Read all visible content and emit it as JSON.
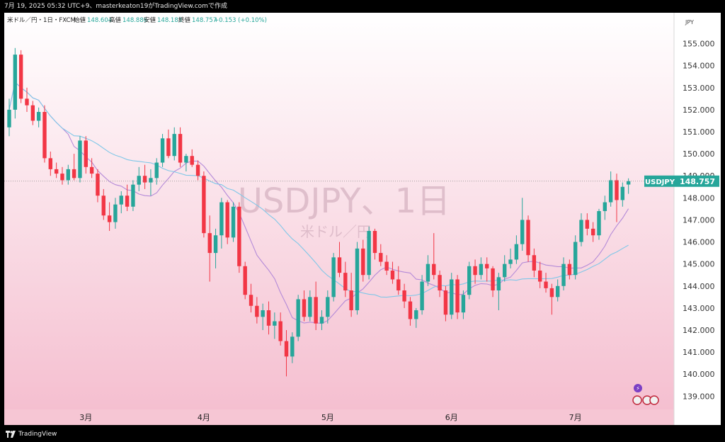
{
  "header": {
    "caption": "7月 19, 2025 05:32 UTC+9、masterkeaton19がTradingView.comで作成"
  },
  "footer": {
    "brand": "TradingView"
  },
  "chart_data": {
    "type": "candlestick",
    "legend": {
      "symbol": "米ドル／円・1日・FXCM",
      "open_label": "始値",
      "open": "148.604",
      "high_label": "高値",
      "high": "148.886",
      "low_label": "安値",
      "low": "148.183",
      "close_label": "終値",
      "close": "148.757",
      "change": "+0.153 (+0.10%)"
    },
    "currency": "JPY",
    "watermark": {
      "title": "USDJPY、1日",
      "subtitle": "米ドル／円"
    },
    "price_label": {
      "symbol": "USDJPY",
      "value": "148.757",
      "price": 148.757
    },
    "y_range": [
      138.4,
      156.4
    ],
    "y_ticks": [
      "155.000",
      "154.000",
      "153.000",
      "152.000",
      "151.000",
      "150.000",
      "149.000",
      "148.000",
      "147.000",
      "146.000",
      "145.000",
      "144.000",
      "143.000",
      "142.000",
      "141.000",
      "140.000",
      "139.000"
    ],
    "x_ticks": [
      {
        "label": "3月",
        "index": 13
      },
      {
        "label": "4月",
        "index": 33
      },
      {
        "label": "5月",
        "index": 54
      },
      {
        "label": "6月",
        "index": 75
      },
      {
        "label": "7月",
        "index": 96
      }
    ],
    "colors": {
      "up": "#26a69a",
      "down": "#f23645",
      "ma_short": "#b48ad8",
      "ma_long": "#7fc7e8"
    },
    "candles": [
      [
        151.2,
        152.5,
        150.8,
        152.0
      ],
      [
        152.0,
        154.8,
        151.6,
        154.5
      ],
      [
        154.5,
        154.7,
        152.3,
        152.5
      ],
      [
        152.5,
        153.0,
        151.9,
        152.2
      ],
      [
        152.2,
        152.4,
        151.3,
        151.5
      ],
      [
        151.5,
        152.1,
        151.2,
        151.9
      ],
      [
        151.9,
        152.2,
        149.6,
        149.8
      ],
      [
        149.8,
        150.1,
        149.0,
        149.3
      ],
      [
        149.3,
        149.6,
        148.9,
        149.1
      ],
      [
        149.1,
        149.4,
        148.6,
        148.8
      ],
      [
        148.8,
        149.5,
        148.6,
        149.3
      ],
      [
        149.3,
        150.0,
        148.8,
        148.9
      ],
      [
        148.9,
        150.8,
        148.7,
        150.6
      ],
      [
        150.6,
        150.8,
        149.1,
        149.4
      ],
      [
        149.4,
        149.8,
        148.9,
        149.1
      ],
      [
        149.1,
        149.3,
        147.8,
        148.1
      ],
      [
        148.1,
        148.4,
        147.0,
        147.2
      ],
      [
        147.2,
        147.8,
        146.5,
        146.9
      ],
      [
        146.9,
        148.0,
        146.6,
        147.7
      ],
      [
        147.7,
        148.3,
        147.3,
        148.1
      ],
      [
        148.1,
        148.6,
        147.4,
        147.6
      ],
      [
        147.6,
        148.8,
        147.4,
        148.6
      ],
      [
        148.6,
        149.4,
        148.3,
        149.0
      ],
      [
        149.0,
        149.5,
        148.4,
        148.7
      ],
      [
        148.7,
        149.3,
        148.1,
        148.9
      ],
      [
        148.9,
        149.8,
        148.6,
        149.6
      ],
      [
        149.6,
        150.9,
        149.4,
        150.7
      ],
      [
        150.7,
        151.1,
        149.8,
        149.9
      ],
      [
        149.9,
        151.2,
        149.7,
        150.9
      ],
      [
        150.9,
        151.2,
        149.4,
        149.6
      ],
      [
        149.6,
        150.0,
        149.2,
        149.9
      ],
      [
        149.9,
        150.2,
        149.4,
        149.5
      ],
      [
        149.5,
        149.7,
        148.8,
        149.0
      ],
      [
        149.0,
        149.2,
        146.2,
        146.4
      ],
      [
        146.4,
        147.2,
        144.2,
        145.5
      ],
      [
        145.5,
        146.6,
        144.8,
        146.3
      ],
      [
        146.3,
        148.0,
        145.7,
        147.8
      ],
      [
        147.8,
        147.9,
        145.9,
        146.2
      ],
      [
        146.2,
        147.8,
        146.0,
        147.6
      ],
      [
        147.6,
        147.8,
        144.6,
        144.9
      ],
      [
        144.9,
        145.1,
        143.4,
        143.6
      ],
      [
        143.6,
        144.1,
        142.8,
        143.1
      ],
      [
        143.1,
        143.5,
        142.3,
        142.6
      ],
      [
        142.6,
        143.2,
        142.0,
        142.9
      ],
      [
        142.9,
        143.3,
        141.8,
        142.2
      ],
      [
        142.2,
        142.8,
        141.6,
        142.4
      ],
      [
        142.4,
        142.8,
        141.3,
        141.5
      ],
      [
        141.5,
        142.0,
        139.9,
        140.8
      ],
      [
        140.8,
        141.9,
        140.5,
        141.7
      ],
      [
        141.7,
        143.6,
        141.5,
        143.4
      ],
      [
        143.4,
        143.8,
        142.4,
        142.6
      ],
      [
        142.6,
        143.8,
        142.4,
        143.5
      ],
      [
        143.5,
        144.2,
        142.0,
        142.3
      ],
      [
        142.3,
        142.9,
        142.0,
        142.6
      ],
      [
        142.6,
        143.8,
        142.3,
        143.5
      ],
      [
        143.5,
        145.5,
        143.3,
        145.3
      ],
      [
        145.3,
        146.0,
        144.4,
        144.6
      ],
      [
        144.6,
        145.1,
        143.5,
        143.8
      ],
      [
        143.8,
        144.6,
        142.6,
        142.9
      ],
      [
        142.9,
        146.0,
        142.7,
        145.7
      ],
      [
        145.7,
        146.1,
        144.2,
        144.5
      ],
      [
        144.5,
        146.7,
        144.3,
        146.5
      ],
      [
        146.5,
        146.6,
        145.2,
        145.5
      ],
      [
        145.5,
        145.9,
        144.9,
        145.1
      ],
      [
        145.1,
        145.4,
        144.5,
        144.7
      ],
      [
        144.7,
        145.1,
        144.1,
        144.3
      ],
      [
        144.3,
        144.9,
        143.6,
        143.8
      ],
      [
        143.8,
        144.1,
        143.0,
        143.3
      ],
      [
        143.3,
        143.5,
        142.2,
        142.5
      ],
      [
        142.5,
        143.0,
        142.1,
        142.9
      ],
      [
        142.9,
        144.5,
        142.7,
        144.2
      ],
      [
        144.2,
        145.4,
        144.0,
        145.0
      ],
      [
        145.0,
        146.4,
        144.3,
        144.5
      ],
      [
        144.5,
        144.7,
        143.5,
        143.8
      ],
      [
        143.8,
        144.0,
        142.4,
        142.7
      ],
      [
        142.7,
        144.6,
        142.5,
        144.3
      ],
      [
        144.3,
        144.5,
        142.5,
        142.8
      ],
      [
        142.8,
        143.8,
        142.5,
        143.6
      ],
      [
        143.6,
        145.1,
        143.4,
        144.9
      ],
      [
        144.9,
        145.2,
        144.1,
        144.5
      ],
      [
        144.5,
        145.3,
        144.3,
        145.0
      ],
      [
        145.0,
        145.3,
        144.2,
        144.8
      ],
      [
        144.8,
        144.9,
        143.5,
        143.8
      ],
      [
        143.8,
        144.6,
        142.9,
        144.4
      ],
      [
        144.4,
        145.4,
        144.2,
        145.0
      ],
      [
        145.0,
        145.7,
        144.8,
        145.2
      ],
      [
        145.2,
        146.3,
        145.0,
        145.9
      ],
      [
        145.9,
        148.0,
        145.6,
        147.0
      ],
      [
        147.0,
        147.2,
        145.1,
        145.4
      ],
      [
        145.4,
        145.7,
        144.4,
        144.7
      ],
      [
        144.7,
        145.1,
        143.9,
        144.2
      ],
      [
        144.2,
        144.6,
        143.7,
        143.9
      ],
      [
        143.9,
        144.1,
        142.7,
        143.5
      ],
      [
        143.5,
        144.3,
        143.3,
        144.0
      ],
      [
        144.0,
        145.3,
        143.8,
        145.0
      ],
      [
        145.0,
        145.2,
        144.3,
        144.5
      ],
      [
        144.5,
        146.3,
        144.3,
        146.0
      ],
      [
        146.0,
        147.3,
        145.8,
        147.0
      ],
      [
        147.0,
        147.3,
        146.3,
        146.6
      ],
      [
        146.6,
        146.9,
        146.0,
        146.3
      ],
      [
        146.3,
        147.5,
        146.1,
        147.4
      ],
      [
        147.4,
        148.1,
        147.0,
        147.8
      ],
      [
        147.8,
        149.2,
        147.6,
        148.8
      ],
      [
        148.8,
        149.1,
        146.9,
        147.9
      ],
      [
        147.9,
        148.7,
        147.6,
        148.5
      ],
      [
        148.604,
        148.886,
        148.183,
        148.757
      ]
    ]
  }
}
